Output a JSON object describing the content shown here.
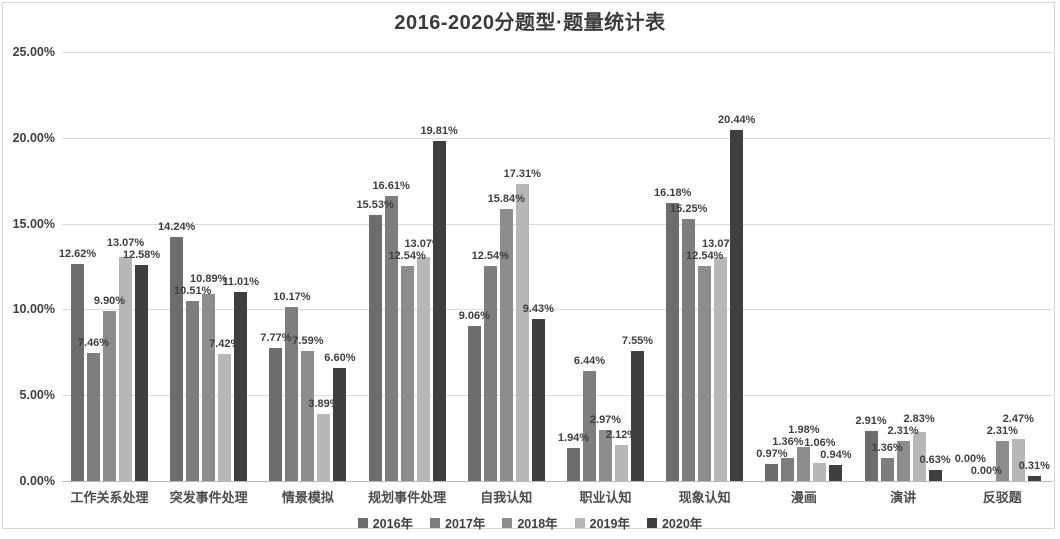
{
  "chart_data": {
    "type": "bar",
    "title": "2016-2020分题型·题量统计表",
    "categories": [
      "工作关系处理",
      "突发事件处理",
      "情景模拟",
      "规划事件处理",
      "自我认知",
      "职业认知",
      "现象认知",
      "漫画",
      "演讲",
      "反驳题"
    ],
    "series": [
      {
        "name": "2016年",
        "color": "#6d6d6d",
        "values": [
          12.62,
          14.24,
          7.77,
          15.53,
          9.06,
          1.94,
          16.18,
          0.97,
          2.91,
          0.0
        ]
      },
      {
        "name": "2017年",
        "color": "#7e7e7e",
        "values": [
          7.46,
          10.51,
          10.17,
          16.61,
          12.54,
          6.44,
          15.25,
          1.36,
          1.36,
          0.0
        ]
      },
      {
        "name": "2018年",
        "color": "#8d8d8d",
        "values": [
          9.9,
          10.89,
          7.59,
          12.54,
          15.84,
          2.97,
          12.54,
          1.98,
          2.31,
          2.31
        ]
      },
      {
        "name": "2019年",
        "color": "#b7b7b7",
        "values": [
          13.07,
          7.42,
          3.89,
          13.07,
          17.31,
          2.12,
          13.07,
          1.06,
          2.83,
          2.47
        ]
      },
      {
        "name": "2020年",
        "color": "#3f3f3f",
        "values": [
          12.58,
          11.01,
          6.6,
          19.81,
          9.43,
          7.55,
          20.44,
          0.94,
          0.63,
          0.31
        ]
      }
    ],
    "value_label_format": "0.00%",
    "y_axis": {
      "ticks": [
        "0.00%",
        "5.00%",
        "10.00%",
        "15.00%",
        "20.00%",
        "25.00%"
      ],
      "min": 0,
      "max": 25,
      "step": 5
    },
    "grid": true,
    "legend_position": "bottom"
  }
}
